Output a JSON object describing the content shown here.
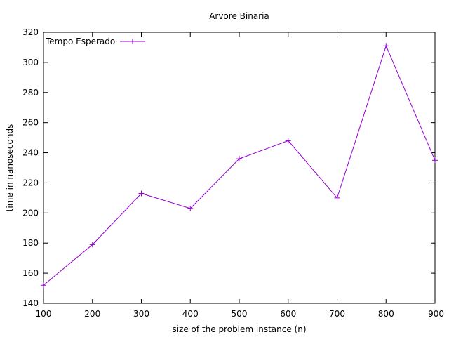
{
  "chart_data": {
    "type": "line",
    "title": "Arvore Binaria",
    "xlabel": "size of the problem instance (n)",
    "ylabel": "time in nanoseconds",
    "xlim": [
      100,
      900
    ],
    "ylim": [
      140,
      320
    ],
    "xticks": [
      100,
      200,
      300,
      400,
      500,
      600,
      700,
      800,
      900
    ],
    "yticks": [
      140,
      160,
      180,
      200,
      220,
      240,
      260,
      280,
      300,
      320
    ],
    "legend_position": "top-left",
    "grid": false,
    "series": [
      {
        "name": "Tempo Esperado",
        "color": "#9400d3",
        "marker": "plus",
        "x": [
          100,
          200,
          300,
          400,
          500,
          600,
          700,
          800,
          900
        ],
        "y": [
          152,
          179,
          213,
          203,
          236,
          248,
          210,
          311,
          235
        ]
      }
    ]
  }
}
